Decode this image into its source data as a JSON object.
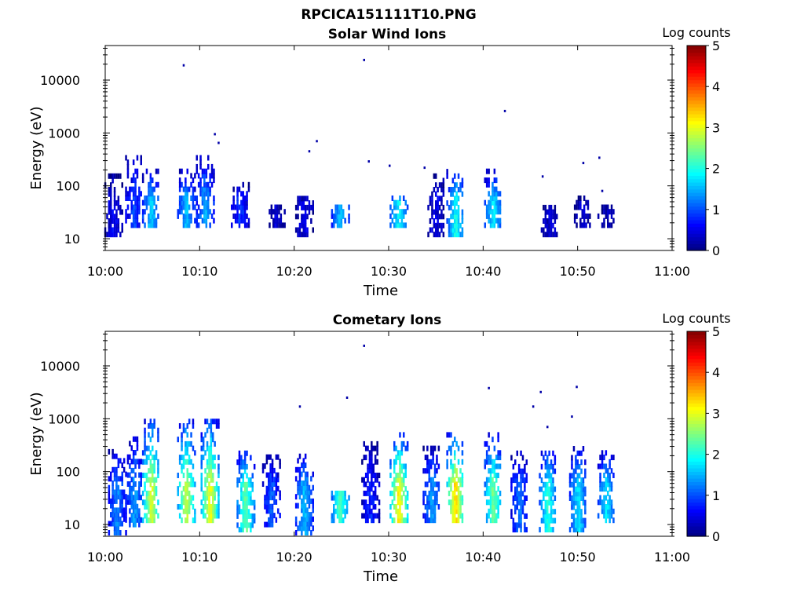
{
  "figure_title": "RPCICA151111T10.PNG",
  "colorbar": {
    "label": "Log counts",
    "ticks": [
      "0",
      "1",
      "2",
      "3",
      "4",
      "5"
    ],
    "range": [
      0,
      5
    ],
    "colormap": "jet"
  },
  "chart_data": [
    {
      "type": "heatmap",
      "title": "Solar Wind Ions",
      "xlabel": "Time",
      "ylabel": "Energy (eV)",
      "x_ticks": [
        "10:00",
        "10:10",
        "10:20",
        "10:30",
        "10:40",
        "10:50",
        "11:00"
      ],
      "y_ticks": [
        "10",
        "100",
        "1000",
        "10000"
      ],
      "xlim_minutes": [
        0,
        60
      ],
      "ylim_eV": [
        6,
        45000
      ],
      "y_scale": "log",
      "bursts": [
        {
          "t": 0.8,
          "e_lo": 12,
          "e_hi": 160,
          "peak": 0.8
        },
        {
          "t": 3.0,
          "e_lo": 18,
          "e_hi": 400,
          "peak": 1.2
        },
        {
          "t": 4.8,
          "e_lo": 18,
          "e_hi": 200,
          "peak": 1.9
        },
        {
          "t": 8.5,
          "e_lo": 18,
          "e_hi": 200,
          "peak": 1.8
        },
        {
          "t": 10.5,
          "e_lo": 18,
          "e_hi": 350,
          "peak": 1.7
        },
        {
          "t": 14.2,
          "e_lo": 18,
          "e_hi": 120,
          "peak": 1.1
        },
        {
          "t": 18.0,
          "e_lo": 18,
          "e_hi": 40,
          "peak": 0.6
        },
        {
          "t": 21.0,
          "e_lo": 12,
          "e_hi": 60,
          "peak": 0.7
        },
        {
          "t": 24.8,
          "e_lo": 18,
          "e_hi": 40,
          "peak": 1.8
        },
        {
          "t": 31.0,
          "e_lo": 18,
          "e_hi": 60,
          "peak": 2.1
        },
        {
          "t": 35.0,
          "e_lo": 12,
          "e_hi": 200,
          "peak": 0.7
        },
        {
          "t": 37.0,
          "e_lo": 12,
          "e_hi": 200,
          "peak": 2.2
        },
        {
          "t": 41.0,
          "e_lo": 18,
          "e_hi": 200,
          "peak": 2.0
        },
        {
          "t": 47.0,
          "e_lo": 12,
          "e_hi": 40,
          "peak": 0.6
        },
        {
          "t": 50.5,
          "e_lo": 18,
          "e_hi": 60,
          "peak": 0.6
        },
        {
          "t": 53.0,
          "e_lo": 18,
          "e_hi": 40,
          "peak": 0.5
        }
      ],
      "isolated_points": [
        {
          "t": 8.2,
          "e": 19000
        },
        {
          "t": 27.3,
          "e": 24000
        },
        {
          "t": 42.2,
          "e": 2600
        },
        {
          "t": 11.5,
          "e": 950
        },
        {
          "t": 11.9,
          "e": 650
        },
        {
          "t": 21.5,
          "e": 450
        },
        {
          "t": 22.3,
          "e": 700
        },
        {
          "t": 27.8,
          "e": 290
        },
        {
          "t": 30.0,
          "e": 240
        },
        {
          "t": 33.7,
          "e": 220
        },
        {
          "t": 46.2,
          "e": 150
        },
        {
          "t": 50.5,
          "e": 270
        },
        {
          "t": 52.2,
          "e": 340
        },
        {
          "t": 52.5,
          "e": 80
        }
      ]
    },
    {
      "type": "heatmap",
      "title": "Cometary Ions",
      "xlabel": "Time",
      "ylabel": "Energy (eV)",
      "x_ticks": [
        "10:00",
        "10:10",
        "10:20",
        "10:30",
        "10:40",
        "10:50",
        "11:00"
      ],
      "y_ticks": [
        "10",
        "100",
        "1000",
        "10000"
      ],
      "xlim_minutes": [
        0,
        60
      ],
      "ylim_eV": [
        6,
        45000
      ],
      "y_scale": "log",
      "bursts": [
        {
          "t": 1.2,
          "e_lo": 7,
          "e_hi": 250,
          "peak": 1.5
        },
        {
          "t": 3.0,
          "e_lo": 10,
          "e_hi": 500,
          "peak": 1.6
        },
        {
          "t": 4.8,
          "e_lo": 12,
          "e_hi": 900,
          "peak": 3.2
        },
        {
          "t": 8.5,
          "e_lo": 12,
          "e_hi": 1000,
          "peak": 3.1
        },
        {
          "t": 11.0,
          "e_lo": 12,
          "e_hi": 900,
          "peak": 3.4
        },
        {
          "t": 14.8,
          "e_lo": 8,
          "e_hi": 250,
          "peak": 2.6
        },
        {
          "t": 17.5,
          "e_lo": 10,
          "e_hi": 200,
          "peak": 1.3
        },
        {
          "t": 21.0,
          "e_lo": 7,
          "e_hi": 200,
          "peak": 1.8
        },
        {
          "t": 24.8,
          "e_lo": 12,
          "e_hi": 40,
          "peak": 2.5
        },
        {
          "t": 28.0,
          "e_lo": 12,
          "e_hi": 400,
          "peak": 1.0
        },
        {
          "t": 31.0,
          "e_lo": 12,
          "e_hi": 500,
          "peak": 3.5
        },
        {
          "t": 34.5,
          "e_lo": 12,
          "e_hi": 300,
          "peak": 1.6
        },
        {
          "t": 37.0,
          "e_lo": 12,
          "e_hi": 500,
          "peak": 3.6
        },
        {
          "t": 41.0,
          "e_lo": 12,
          "e_hi": 500,
          "peak": 2.7
        },
        {
          "t": 43.8,
          "e_lo": 8,
          "e_hi": 250,
          "peak": 1.4
        },
        {
          "t": 46.8,
          "e_lo": 8,
          "e_hi": 300,
          "peak": 2.3
        },
        {
          "t": 50.0,
          "e_lo": 8,
          "e_hi": 300,
          "peak": 2.0
        },
        {
          "t": 53.0,
          "e_lo": 12,
          "e_hi": 250,
          "peak": 2.0
        }
      ],
      "isolated_points": [
        {
          "t": 27.3,
          "e": 24000
        },
        {
          "t": 40.5,
          "e": 3800
        },
        {
          "t": 46.0,
          "e": 3200
        },
        {
          "t": 49.8,
          "e": 4000
        },
        {
          "t": 25.5,
          "e": 2500
        },
        {
          "t": 20.5,
          "e": 1700
        },
        {
          "t": 45.2,
          "e": 1700
        },
        {
          "t": 49.3,
          "e": 1100
        },
        {
          "t": 46.7,
          "e": 700
        }
      ]
    }
  ]
}
